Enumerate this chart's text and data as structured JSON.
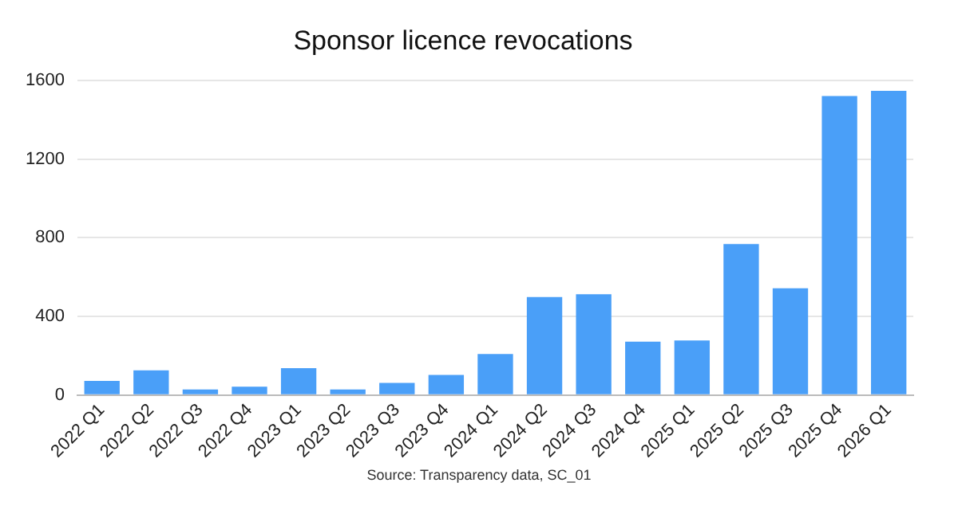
{
  "chart_data": {
    "type": "bar",
    "title": "Sponsor licence revocations",
    "categories": [
      "2022 Q1",
      "2022 Q2",
      "2022 Q3",
      "2022 Q4",
      "2023 Q1",
      "2023 Q2",
      "2023 Q3",
      "2023 Q4",
      "2024 Q1",
      "2024 Q2",
      "2024 Q3",
      "2024 Q4",
      "2025 Q1",
      "2025 Q2",
      "2025 Q3",
      "2025 Q4",
      "2026 Q1"
    ],
    "values": [
      72,
      125,
      28,
      42,
      136,
      28,
      61,
      102,
      208,
      498,
      512,
      271,
      277,
      767,
      543,
      1520,
      1547
    ],
    "color": "#4a9ff8",
    "ylim": [
      0,
      1600
    ],
    "yticks": [
      0,
      400,
      800,
      1200,
      1600
    ],
    "grid": "y",
    "annotations": [
      "Source: Transparency data, SC_01"
    ]
  }
}
